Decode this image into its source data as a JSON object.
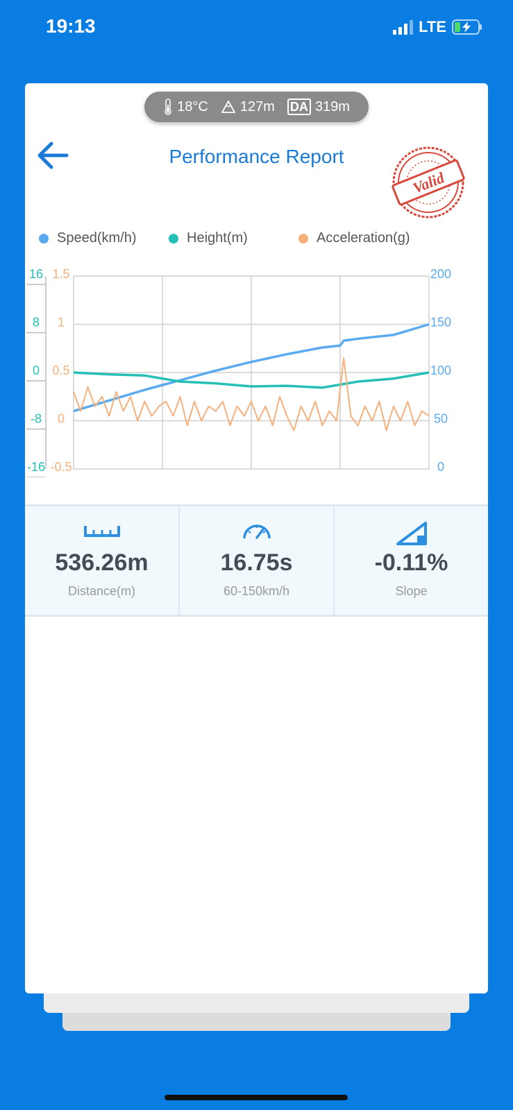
{
  "status_bar": {
    "time": "19:13",
    "network": "LTE"
  },
  "conditions": {
    "temperature": "18°C",
    "altitude": "127m",
    "density_label": "DA",
    "density_altitude": "319m"
  },
  "header": {
    "title": "Performance Report",
    "stamp_text": "Valid"
  },
  "icons": {
    "back": "arrow-left-icon",
    "temperature": "thermometer-icon",
    "altitude": "mountain-icon",
    "distance": "ruler-icon",
    "time": "speedometer-icon",
    "slope": "slope-icon"
  },
  "colors": {
    "speed": "#5aaaf0",
    "height": "#26bfb6",
    "acceleration": "#f6b07c",
    "title": "#1a7ad6",
    "stamp": "#d9483b"
  },
  "chart_data": {
    "type": "line",
    "legend": [
      "Speed(km/h)",
      "Height(m)",
      "Acceleration(g)"
    ],
    "axes": {
      "left_height": {
        "ticks": [
          "16",
          "8",
          "0",
          "-8",
          "-16"
        ],
        "range": [
          -16,
          16
        ]
      },
      "left_accel": {
        "ticks": [
          "1.5",
          "1",
          "0.5",
          "0",
          "-0.5"
        ],
        "range": [
          -0.5,
          1.5
        ]
      },
      "right_speed": {
        "ticks": [
          "200",
          "150",
          "100",
          "50",
          "0"
        ],
        "range": [
          0,
          200
        ]
      }
    },
    "grid": true,
    "series": [
      {
        "name": "Speed(km/h)",
        "axis": "right_speed",
        "x": [
          0,
          0.1,
          0.2,
          0.3,
          0.4,
          0.5,
          0.6,
          0.7,
          0.75,
          0.76,
          0.8,
          0.9,
          1.0
        ],
        "y": [
          60,
          71,
          82,
          92,
          102,
          111,
          119,
          126,
          128,
          133,
          135,
          139,
          150
        ]
      },
      {
        "name": "Height(m)",
        "axis": "left_height",
        "x": [
          0,
          0.1,
          0.2,
          0.3,
          0.4,
          0.5,
          0.6,
          0.7,
          0.75,
          0.8,
          0.9,
          1.0
        ],
        "y": [
          0,
          -0.3,
          -0.5,
          -1.5,
          -1.8,
          -2.3,
          -2.2,
          -2.5,
          -2.0,
          -1.5,
          -1.0,
          0
        ]
      },
      {
        "name": "Acceleration(g)",
        "axis": "left_accel",
        "x": [
          0,
          0.02,
          0.04,
          0.06,
          0.08,
          0.1,
          0.12,
          0.14,
          0.16,
          0.18,
          0.2,
          0.22,
          0.24,
          0.26,
          0.28,
          0.3,
          0.32,
          0.34,
          0.36,
          0.38,
          0.4,
          0.42,
          0.44,
          0.46,
          0.48,
          0.5,
          0.52,
          0.54,
          0.56,
          0.58,
          0.6,
          0.62,
          0.64,
          0.66,
          0.68,
          0.7,
          0.72,
          0.74,
          0.76,
          0.78,
          0.8,
          0.82,
          0.84,
          0.86,
          0.88,
          0.9,
          0.92,
          0.94,
          0.96,
          0.98,
          1.0
        ],
        "y": [
          0.3,
          0.1,
          0.35,
          0.15,
          0.25,
          0.05,
          0.3,
          0.1,
          0.25,
          0.0,
          0.2,
          0.05,
          0.15,
          0.2,
          0.05,
          0.25,
          -0.05,
          0.2,
          0.0,
          0.15,
          0.1,
          0.2,
          -0.05,
          0.15,
          0.05,
          0.2,
          0.0,
          0.15,
          -0.05,
          0.25,
          0.05,
          -0.1,
          0.15,
          0.0,
          0.2,
          -0.05,
          0.1,
          0.0,
          0.65,
          0.05,
          -0.05,
          0.15,
          0.0,
          0.2,
          -0.1,
          0.15,
          0.0,
          0.2,
          -0.05,
          0.1,
          0.05
        ]
      }
    ]
  },
  "metrics": [
    {
      "value": "536.26m",
      "label": "Distance(m)"
    },
    {
      "value": "16.75s",
      "label": "60-150km/h"
    },
    {
      "value": "-0.11%",
      "label": "Slope"
    }
  ]
}
